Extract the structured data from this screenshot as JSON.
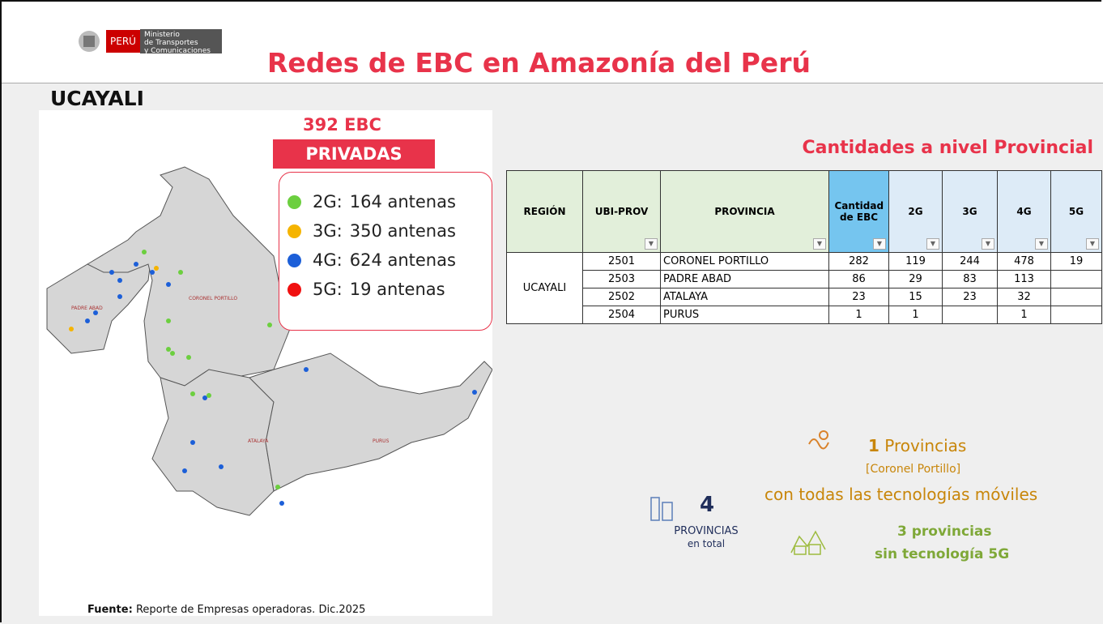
{
  "header": {
    "logo_country": "PERÚ",
    "logo_ministry": [
      "Ministerio",
      "de Transportes",
      "y Comunicaciones"
    ],
    "title": "Redes de EBC en Amazonía del Perú"
  },
  "region": "UCAYALI",
  "summary": {
    "total": "392 EBC",
    "badge": "PRIVADAS"
  },
  "legend": [
    {
      "label": "2G:",
      "count": "164 antenas",
      "color": "#6ccf3f"
    },
    {
      "label": "3G:",
      "count": "350 antenas",
      "color": "#f5b400"
    },
    {
      "label": "4G:",
      "count": "624 antenas",
      "color": "#1c5fd8"
    },
    {
      "label": "5G:",
      "count": "19 antenas",
      "color": "#f01010"
    }
  ],
  "map_labels": [
    "PADRE ABAD",
    "CORONEL PORTILLO",
    "ATALAYA",
    "PURUS"
  ],
  "table": {
    "title": "Cantidades a nivel Provincial",
    "columns": [
      "REGIÓN",
      "UBI-PROV",
      "PROVINCIA",
      "Cantidad de EBC",
      "2G",
      "3G",
      "4G",
      "5G"
    ],
    "region": "UCAYALI",
    "rows": [
      [
        "2501",
        "CORONEL PORTILLO",
        282,
        119,
        244,
        478,
        19
      ],
      [
        "2503",
        "PADRE ABAD",
        86,
        29,
        83,
        113,
        null
      ],
      [
        "2502",
        "ATALAYA",
        23,
        15,
        23,
        32,
        null
      ],
      [
        "2504",
        "PURUS",
        1,
        1,
        null,
        1,
        null
      ]
    ]
  },
  "stats": {
    "all_tech": {
      "number": "1",
      "label": "Provincias",
      "names": "[Coronel Portillo]",
      "desc": "con todas las tecnologías móviles"
    },
    "total": {
      "number": "4",
      "label": "PROVINCIAS",
      "sub": "en total"
    },
    "no5g": {
      "label": "3 provincias",
      "desc": "sin tecnología 5G"
    }
  },
  "footer": {
    "label": "Fuente:",
    "text": "Reporte de Empresas operadoras. Dic.2025"
  }
}
